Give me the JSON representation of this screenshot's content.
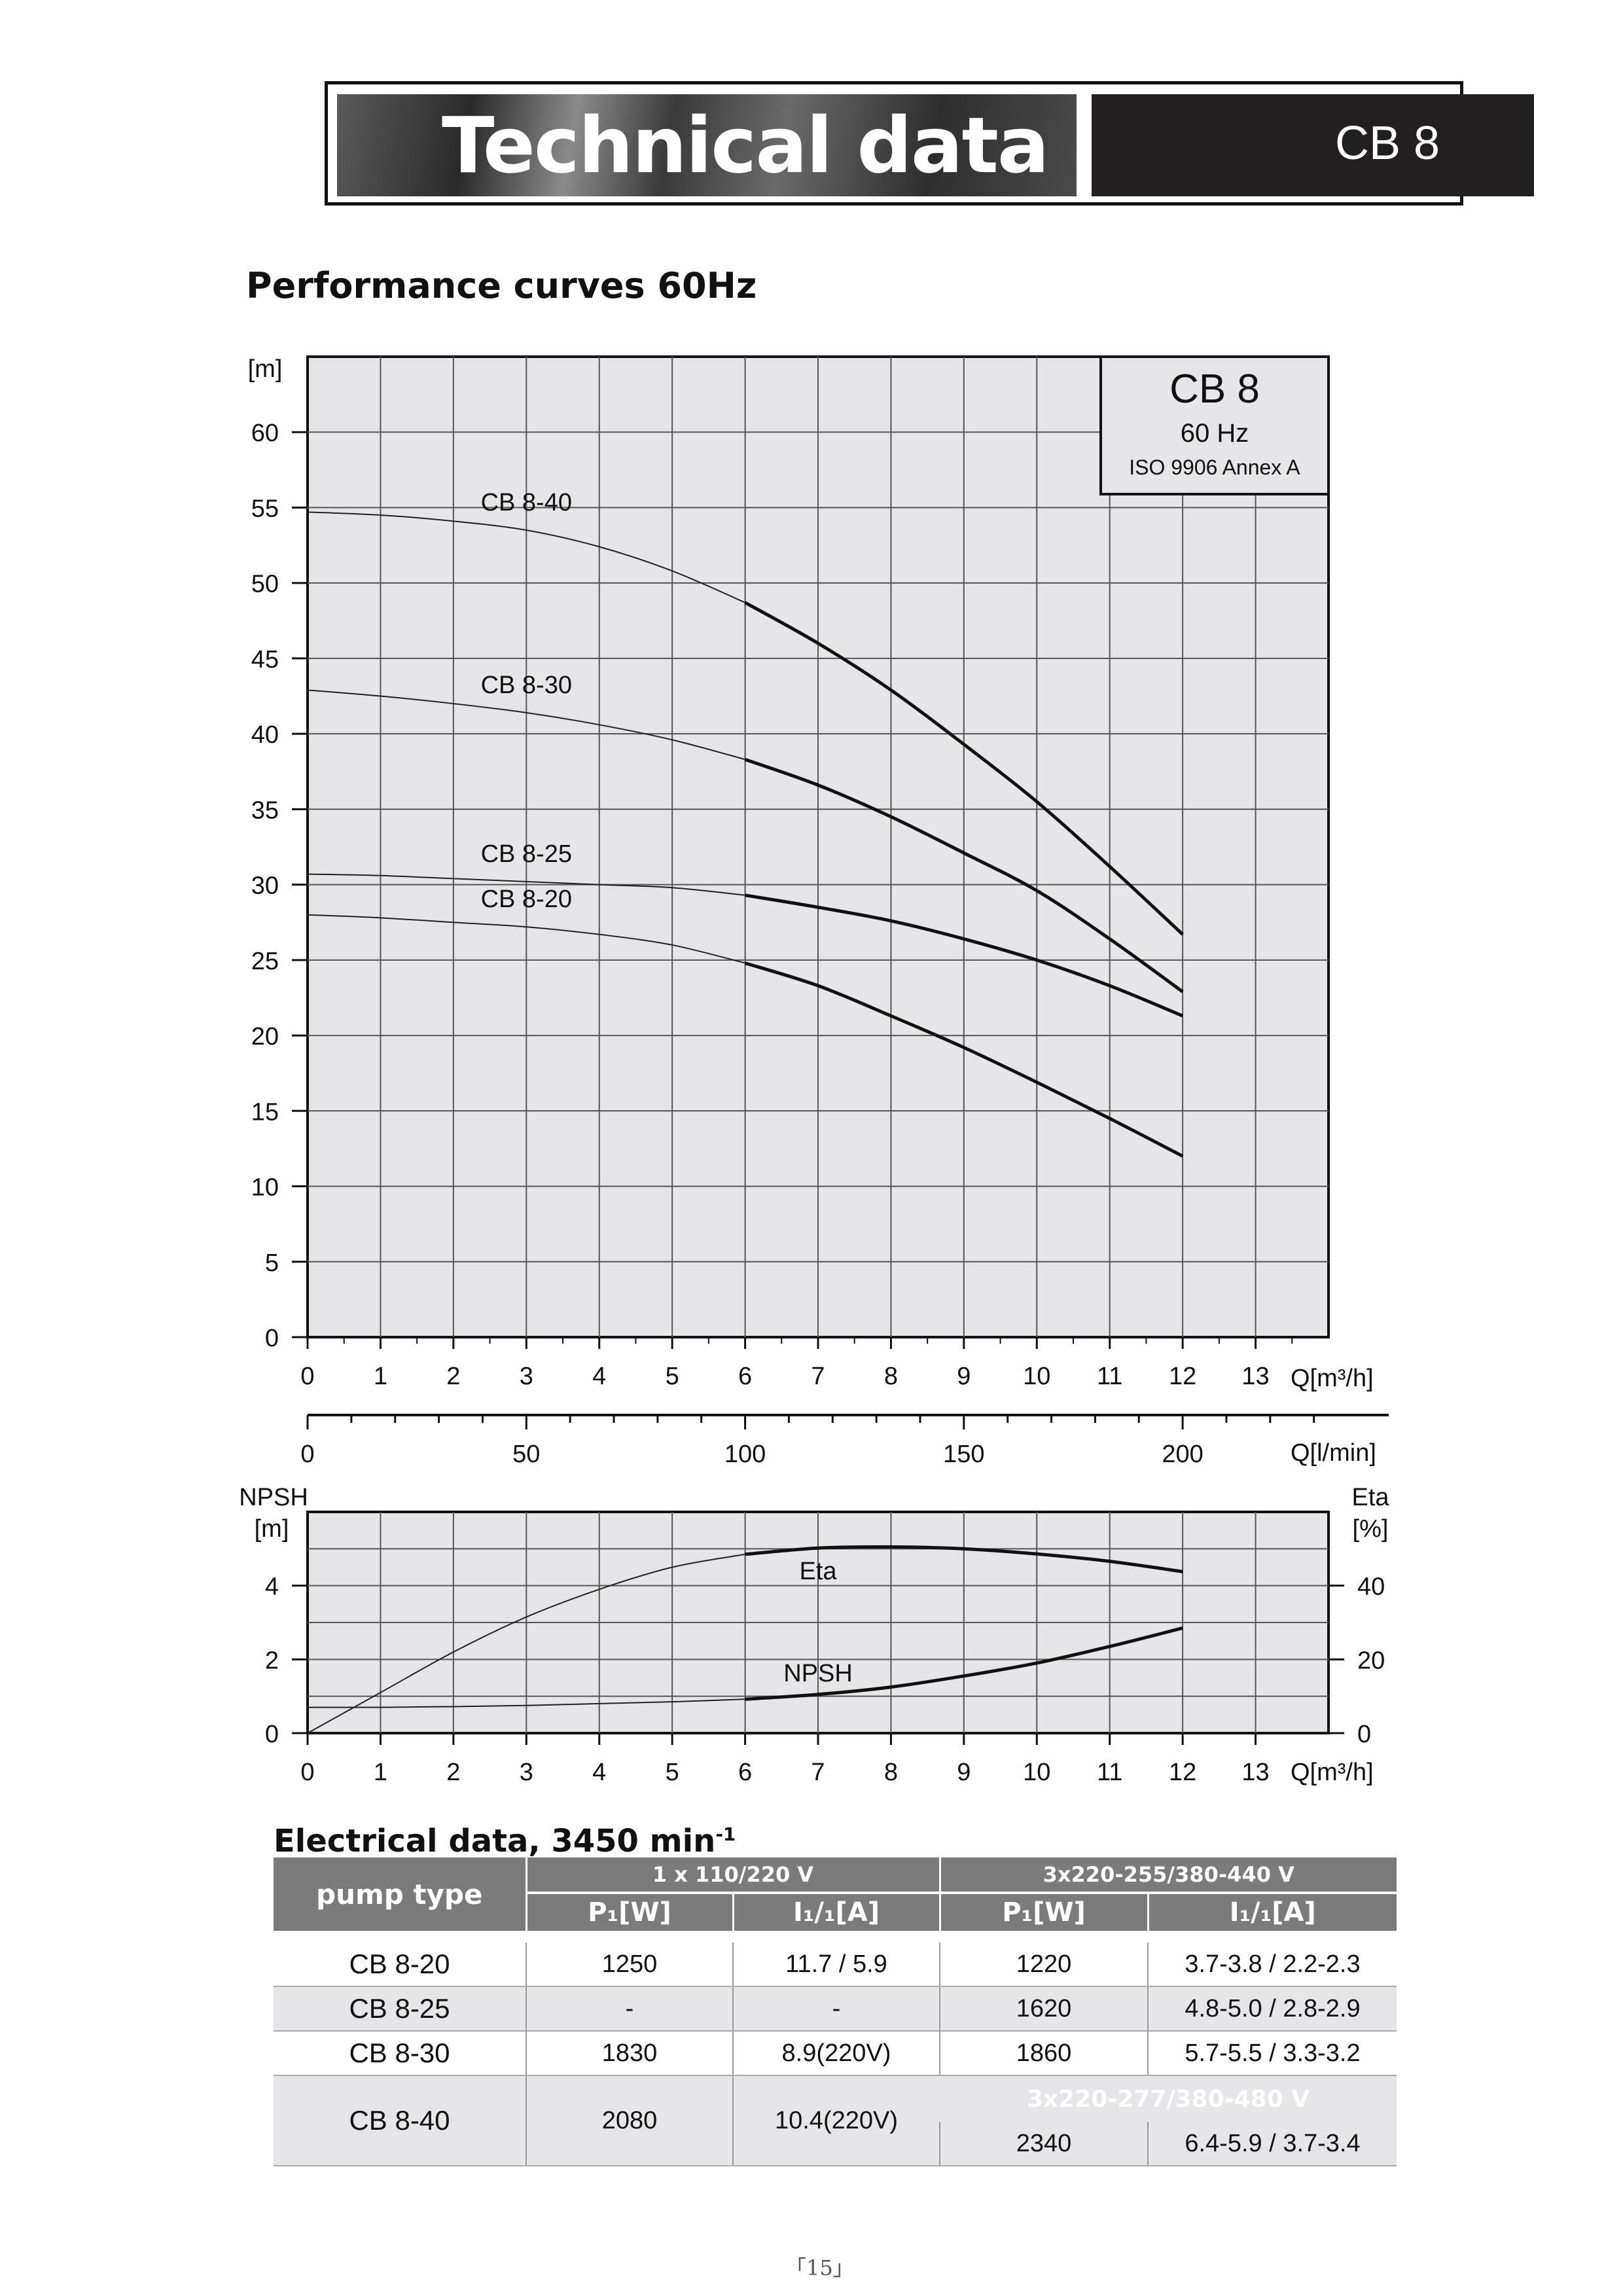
{
  "header": {
    "title": "Technical data",
    "model_code": "CB 8"
  },
  "section_title": "Performance curves 60Hz",
  "chart_data": [
    {
      "type": "line",
      "title": "CB 8",
      "subtitle": "60 Hz",
      "note": "ISO 9906 Annex A",
      "ylabel": "[m]",
      "xlabel": "Q[m³/h]",
      "xlim": [
        0,
        14
      ],
      "ylim": [
        0,
        65
      ],
      "xticks": [
        0,
        1,
        2,
        3,
        4,
        5,
        6,
        7,
        8,
        9,
        10,
        11,
        12,
        13
      ],
      "yticks": [
        0,
        5,
        10,
        15,
        20,
        25,
        30,
        35,
        40,
        45,
        50,
        55,
        60
      ],
      "grid": true,
      "secondary_x": {
        "label": "Q[l/min]",
        "factor": 16.667,
        "ticks": [
          0,
          50,
          100,
          150,
          200
        ]
      },
      "series": [
        {
          "name": "CB 8-40",
          "x": [
            0,
            1,
            2,
            3,
            4,
            5,
            6,
            7,
            8,
            9,
            10,
            11,
            12
          ],
          "y": [
            54.7,
            54.5,
            54.1,
            53.5,
            52.4,
            50.8,
            48.7,
            46.0,
            42.9,
            39.3,
            35.5,
            31.2,
            26.7
          ]
        },
        {
          "name": "CB 8-30",
          "x": [
            0,
            1,
            2,
            3,
            4,
            5,
            6,
            7,
            8,
            9,
            10,
            11,
            12
          ],
          "y": [
            42.9,
            42.5,
            42.0,
            41.4,
            40.6,
            39.6,
            38.3,
            36.6,
            34.5,
            32.1,
            29.6,
            26.4,
            22.9
          ]
        },
        {
          "name": "CB 8-25",
          "x": [
            0,
            1,
            2,
            3,
            4,
            5,
            6,
            7,
            8,
            9,
            10,
            11,
            12
          ],
          "y": [
            30.7,
            30.6,
            30.4,
            30.2,
            30.0,
            29.8,
            29.3,
            28.5,
            27.6,
            26.4,
            25.0,
            23.3,
            21.3
          ]
        },
        {
          "name": "CB 8-20",
          "x": [
            0,
            1,
            2,
            3,
            4,
            5,
            6,
            7,
            8,
            9,
            10,
            11,
            12
          ],
          "y": [
            28.0,
            27.8,
            27.5,
            27.2,
            26.7,
            26.0,
            24.8,
            23.3,
            21.3,
            19.2,
            16.9,
            14.5,
            12.0
          ]
        }
      ],
      "curve_labels_at_x": [
        3,
        3,
        3,
        3
      ]
    },
    {
      "type": "line",
      "ylabel_left": [
        "NPSH",
        "[m]"
      ],
      "ylabel_right": [
        "Eta",
        "[%]"
      ],
      "xlabel": "Q[m³/h]",
      "xlim": [
        0,
        14
      ],
      "ylim_left": [
        0,
        6
      ],
      "ylim_right": [
        0,
        60
      ],
      "xticks": [
        0,
        1,
        2,
        3,
        4,
        5,
        6,
        7,
        8,
        9,
        10,
        11,
        12,
        13
      ],
      "yticks_left": [
        0,
        2,
        4
      ],
      "yticks_right": [
        0,
        20,
        40
      ],
      "grid": true,
      "series": [
        {
          "name": "Eta",
          "axis": "right",
          "x": [
            0,
            1,
            2,
            3,
            4,
            5,
            6,
            7,
            8,
            9,
            10,
            11,
            12
          ],
          "y": [
            0,
            11,
            22,
            31.5,
            39,
            45,
            48.5,
            50.2,
            50.5,
            50,
            48.6,
            46.6,
            43.8
          ]
        },
        {
          "name": "NPSH",
          "axis": "left",
          "x": [
            0,
            1,
            2,
            3,
            4,
            5,
            6,
            7,
            8,
            9,
            10,
            11,
            12
          ],
          "y": [
            0.7,
            0.7,
            0.72,
            0.75,
            0.8,
            0.85,
            0.92,
            1.05,
            1.25,
            1.55,
            1.9,
            2.35,
            2.85
          ]
        }
      ]
    }
  ],
  "electrical": {
    "title": "Electrical data, 3450 min",
    "title_sup": "-1",
    "headers": {
      "pump_type": "pump type",
      "group_1ph": "1 x 110/220 V",
      "group_3ph": "3x220-255/380-440 V",
      "p1": "P₁[W]",
      "i": "I₁/₁[A]"
    },
    "rows": [
      {
        "type": "CB 8-20",
        "p1_1ph": "1250",
        "i_1ph": "11.7 / 5.9",
        "p1_3ph": "1220",
        "i_3ph": "3.7-3.8 / 2.2-2.3"
      },
      {
        "type": "CB 8-25",
        "p1_1ph": "-",
        "i_1ph": "-",
        "p1_3ph": "1620",
        "i_3ph": "4.8-5.0 / 2.8-2.9"
      },
      {
        "type": "CB 8-30",
        "p1_1ph": "1830",
        "i_1ph": "8.9(220V)",
        "p1_3ph": "1860",
        "i_3ph": "5.7-5.5 / 3.3-3.2"
      },
      {
        "type": "CB 8-40",
        "p1_1ph": "2080",
        "i_1ph": "10.4(220V)",
        "group_3ph_alt": "3x220-277/380-480 V",
        "p1_3ph": "2340",
        "i_3ph": "6.4-5.9 / 3.7-3.4"
      }
    ]
  },
  "page_number": "「15」"
}
